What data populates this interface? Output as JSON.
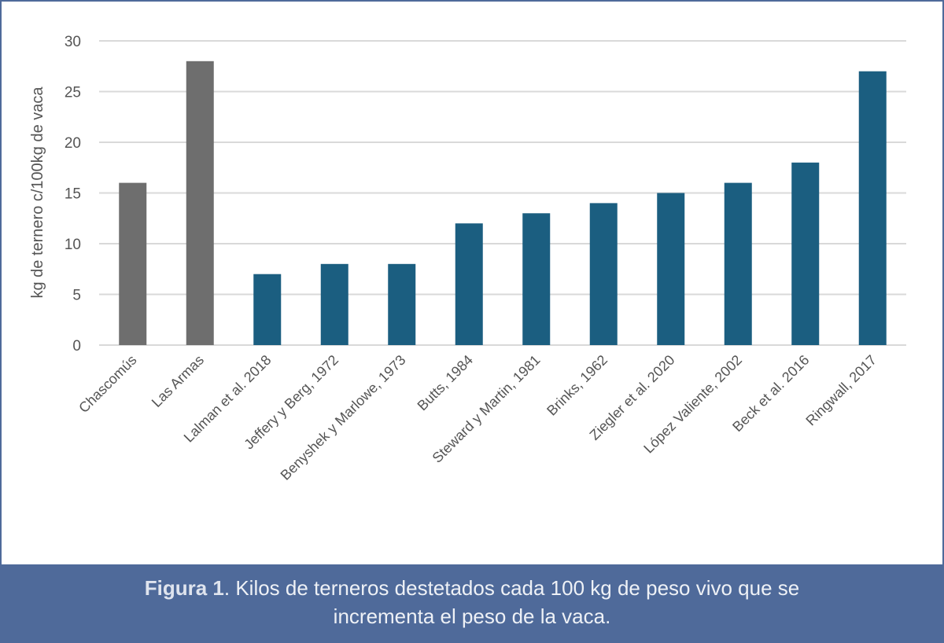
{
  "chart_data": {
    "type": "bar",
    "title": "",
    "xlabel": "",
    "ylabel": "kg de ternero c/100kg de vaca",
    "ylim": [
      0,
      30
    ],
    "yticks": [
      0,
      5,
      10,
      15,
      20,
      25,
      30
    ],
    "grid": true,
    "categories": [
      "Chascomús",
      "Las Armas",
      "Lalman et al. 2018",
      "Jeffery y Berg, 1972",
      "Benyshek y Marlowe, 1973",
      "Butts, 1984",
      "Steward y Martin, 1981",
      "Brinks, 1962",
      "Ziegler et al. 2020",
      "López Valiente, 2002",
      "Beck et al. 2016",
      "Ringwall, 2017"
    ],
    "values": [
      16,
      28,
      7,
      8,
      8,
      12,
      13,
      14,
      15,
      16,
      18,
      27
    ],
    "colors": [
      "#6e6e6e",
      "#6e6e6e",
      "#1b5e80",
      "#1b5e80",
      "#1b5e80",
      "#1b5e80",
      "#1b5e80",
      "#1b5e80",
      "#1b5e80",
      "#1b5e80",
      "#1b5e80",
      "#1b5e80"
    ]
  },
  "caption": {
    "label": "Figura 1",
    "text": ". Kilos de terneros destetados cada 100 kg de peso vivo que se",
    "text2": "incrementa el peso de la vaca."
  }
}
